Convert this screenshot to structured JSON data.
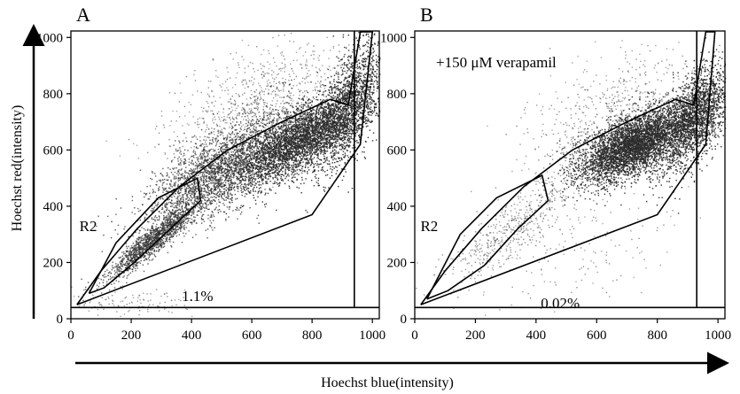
{
  "figure": {
    "x_axis_title": "Hoechst blue(intensity)",
    "y_axis_title": "Hoechst red(intensity)"
  },
  "chart_data": [
    {
      "type": "scatter",
      "panel": "A",
      "title": "A",
      "annotation": "",
      "xlabel": "Hoechst blue(intensity)",
      "ylabel": "Hoechst red(intensity)",
      "xlim": [
        0,
        1023
      ],
      "ylim": [
        0,
        1023
      ],
      "x_ticks": [
        0,
        200,
        400,
        600,
        800,
        1000
      ],
      "y_ticks": [
        0,
        200,
        400,
        600,
        800,
        1000
      ],
      "x_tick_labels": [
        "0",
        "200",
        "400",
        "600",
        "800",
        "1000"
      ],
      "y_tick_labels": [
        "0",
        "200",
        "400",
        "600",
        "800",
        "1000"
      ],
      "grid": false,
      "gates": [
        {
          "name": "R2",
          "label_at": [
            140,
            400
          ],
          "polygon": [
            [
              60,
              90
            ],
            [
              150,
              270
            ],
            [
              290,
              430
            ],
            [
              420,
              500
            ],
            [
              430,
              420
            ],
            [
              330,
              320
            ],
            [
              210,
              200
            ],
            [
              110,
              110
            ]
          ]
        },
        {
          "name": "main",
          "polygon": [
            [
              20,
              50
            ],
            [
              800,
              370
            ],
            [
              960,
              620
            ],
            [
              1000,
              1020
            ],
            [
              960,
              1020
            ],
            [
              920,
              760
            ],
            [
              860,
              780
            ],
            [
              700,
              700
            ],
            [
              520,
              600
            ],
            [
              360,
              470
            ],
            [
              220,
              320
            ],
            [
              100,
              170
            ],
            [
              20,
              50
            ]
          ]
        },
        {
          "name": "threshold",
          "polygon": [
            [
              0,
              40
            ],
            [
              1023,
              40
            ]
          ]
        },
        {
          "name": "upper",
          "polygon": [
            [
              940,
              40
            ],
            [
              940,
              1023
            ]
          ]
        }
      ],
      "gate_percent": "1.1%",
      "percent_label_at": [
        420,
        145
      ],
      "clusters": [
        {
          "mean": [
            270,
            280
          ],
          "sd": [
            75,
            70
          ],
          "count": 1400,
          "rho": 0.93,
          "density": "medium"
        },
        {
          "mean": [
            480,
            520
          ],
          "sd": [
            115,
            100
          ],
          "count": 2400,
          "rho": 0.68,
          "density": "medium"
        },
        {
          "mean": [
            760,
            640
          ],
          "sd": [
            110,
            85
          ],
          "count": 3800,
          "rho": 0.72,
          "density": "high"
        },
        {
          "mean": [
            930,
            780
          ],
          "sd": [
            55,
            120
          ],
          "count": 1400,
          "rho": 0.6,
          "density": "high"
        },
        {
          "mean": [
            640,
            760
          ],
          "sd": [
            150,
            120
          ],
          "count": 900,
          "rho": 0.5,
          "density": "low"
        },
        {
          "mean": [
            180,
            60
          ],
          "sd": [
            100,
            25
          ],
          "count": 120,
          "rho": 0.0,
          "density": "low"
        }
      ]
    },
    {
      "type": "scatter",
      "panel": "B",
      "title": "B",
      "annotation": "+150 μM verapamil",
      "xlabel": "Hoechst blue(intensity)",
      "ylabel": "Hoechst red(intensity)",
      "xlim": [
        0,
        1023
      ],
      "ylim": [
        0,
        1023
      ],
      "x_ticks": [
        0,
        200,
        400,
        600,
        800,
        1000
      ],
      "y_ticks": [
        0,
        200,
        400,
        600,
        800,
        1000
      ],
      "x_tick_labels": [
        "0",
        "200",
        "400",
        "600",
        "800",
        "1000"
      ],
      "y_tick_labels": [
        "0",
        "200",
        "400",
        "600",
        "800",
        "1000"
      ],
      "grid": false,
      "gates": [
        {
          "name": "R2",
          "label_at": [
            130,
            400
          ],
          "polygon": [
            [
              40,
              70
            ],
            [
              150,
              300
            ],
            [
              270,
              430
            ],
            [
              420,
              510
            ],
            [
              440,
              420
            ],
            [
              340,
              320
            ],
            [
              230,
              190
            ],
            [
              110,
              100
            ]
          ]
        },
        {
          "name": "main",
          "polygon": [
            [
              20,
              50
            ],
            [
              800,
              370
            ],
            [
              960,
              620
            ],
            [
              990,
              1020
            ],
            [
              960,
              1020
            ],
            [
              920,
              760
            ],
            [
              860,
              780
            ],
            [
              700,
              700
            ],
            [
              520,
              600
            ],
            [
              360,
              470
            ],
            [
              220,
              320
            ],
            [
              100,
              170
            ],
            [
              20,
              50
            ]
          ]
        },
        {
          "name": "threshold",
          "polygon": [
            [
              0,
              40
            ],
            [
              1023,
              40
            ]
          ]
        },
        {
          "name": "upper",
          "polygon": [
            [
              930,
              40
            ],
            [
              930,
              1023
            ]
          ]
        }
      ],
      "gate_percent": "0.02%",
      "percent_label_at": [
        480,
        120
      ],
      "clusters": [
        {
          "mean": [
            330,
            330
          ],
          "sd": [
            110,
            105
          ],
          "count": 500,
          "rho": 0.85,
          "density": "low"
        },
        {
          "mean": [
            720,
            620
          ],
          "sd": [
            90,
            65
          ],
          "count": 4200,
          "rho": 0.62,
          "density": "high"
        },
        {
          "mean": [
            920,
            720
          ],
          "sd": [
            60,
            90
          ],
          "count": 2200,
          "rho": 0.55,
          "density": "high"
        },
        {
          "mean": [
            640,
            700
          ],
          "sd": [
            140,
            120
          ],
          "count": 700,
          "rho": 0.45,
          "density": "low"
        },
        {
          "mean": [
            560,
            260
          ],
          "sd": [
            180,
            120
          ],
          "count": 180,
          "rho": 0.2,
          "density": "low"
        }
      ]
    }
  ]
}
